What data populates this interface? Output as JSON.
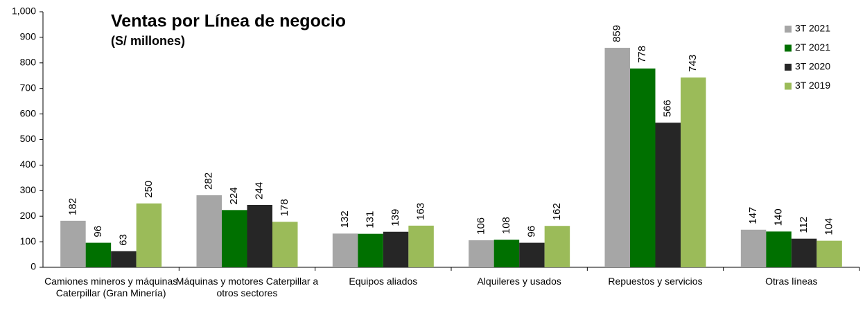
{
  "chart_data": {
    "type": "bar",
    "title": "Ventas por Línea de negocio",
    "subtitle": "(S/ millones)",
    "categories": [
      "Camiones mineros y máquinas Caterpillar (Gran Minería)",
      "Máquinas y motores Caterpillar a otros sectores",
      "Equipos aliados",
      "Alquileres y usados",
      "Repuestos y servicios",
      "Otras líneas"
    ],
    "series": [
      {
        "name": "3T 2021",
        "color": "#a6a6a6",
        "values": [
          182,
          282,
          132,
          106,
          859,
          147
        ]
      },
      {
        "name": "2T 2021",
        "color": "#007000",
        "values": [
          96,
          224,
          131,
          108,
          778,
          140
        ]
      },
      {
        "name": "3T 2020",
        "color": "#262626",
        "values": [
          63,
          244,
          139,
          96,
          566,
          112
        ]
      },
      {
        "name": "3T 2019",
        "color": "#9bbb59",
        "values": [
          250,
          178,
          163,
          162,
          743,
          104
        ]
      }
    ],
    "ylim": [
      0,
      1000
    ],
    "yticks": [
      0,
      100,
      200,
      300,
      400,
      500,
      600,
      700,
      800,
      900,
      {
        "value": 1000,
        "label": "1,000"
      }
    ],
    "grid": false,
    "legend": "top-right"
  }
}
